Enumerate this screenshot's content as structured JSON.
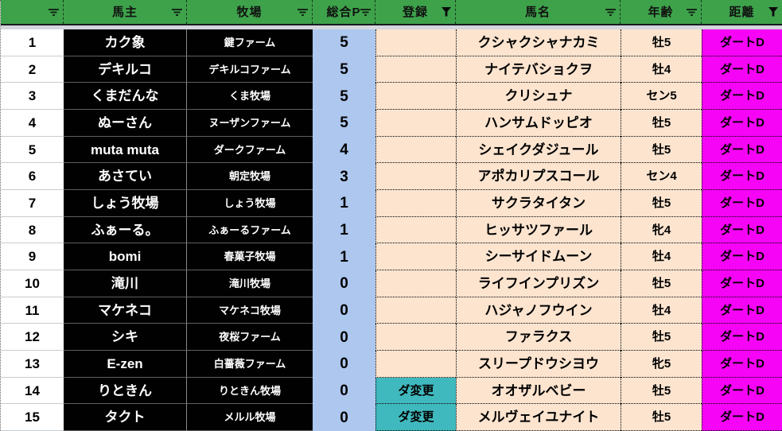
{
  "table": {
    "headers": [
      {
        "label": "",
        "filter": "sort"
      },
      {
        "label": "馬主",
        "filter": "sort"
      },
      {
        "label": "牧場",
        "filter": "sort"
      },
      {
        "label": "総合P",
        "filter": "sort"
      },
      {
        "label": "登録",
        "filter": "funnel"
      },
      {
        "label": "馬名",
        "filter": "sort"
      },
      {
        "label": "年齢",
        "filter": "sort"
      },
      {
        "label": "距離",
        "filter": "funnel"
      }
    ],
    "rows": [
      {
        "no": "1",
        "owner": "カク象",
        "farm": "鍵ファーム",
        "points": "5",
        "reg": "",
        "horse": "クシャクシャナカミ",
        "age": "牡5",
        "dist": "ダートD"
      },
      {
        "no": "2",
        "owner": "デキルコ",
        "farm": "デキルコファーム",
        "points": "5",
        "reg": "",
        "horse": "ナイテバショクヲ",
        "age": "牡4",
        "dist": "ダートD"
      },
      {
        "no": "3",
        "owner": "くまだんな",
        "farm": "くま牧場",
        "points": "5",
        "reg": "",
        "horse": "クリシュナ",
        "age": "セン5",
        "dist": "ダートD"
      },
      {
        "no": "4",
        "owner": "ぬーさん",
        "farm": "ヌーザンファーム",
        "points": "5",
        "reg": "",
        "horse": "ハンサムドッピオ",
        "age": "牡5",
        "dist": "ダートD"
      },
      {
        "no": "5",
        "owner": "muta muta",
        "farm": "ダークファーム",
        "points": "4",
        "reg": "",
        "horse": "シェイクダジュール",
        "age": "牡5",
        "dist": "ダートD"
      },
      {
        "no": "6",
        "owner": "あさてい",
        "farm": "朝定牧場",
        "points": "3",
        "reg": "",
        "horse": "アポカリプスコール",
        "age": "セン4",
        "dist": "ダートD"
      },
      {
        "no": "7",
        "owner": "しょう牧場",
        "farm": "しょう牧場",
        "points": "1",
        "reg": "",
        "horse": "サクラタイタン",
        "age": "牡5",
        "dist": "ダートD"
      },
      {
        "no": "8",
        "owner": "ふぁーる。",
        "farm": "ふぁーるファーム",
        "points": "1",
        "reg": "",
        "horse": "ヒッサツファール",
        "age": "牝4",
        "dist": "ダートD"
      },
      {
        "no": "9",
        "owner": "bomi",
        "farm": "春菓子牧場",
        "points": "1",
        "reg": "",
        "horse": "シーサイドムーン",
        "age": "牡4",
        "dist": "ダートD"
      },
      {
        "no": "10",
        "owner": "滝川",
        "farm": "滝川牧場",
        "points": "0",
        "reg": "",
        "horse": "ライフインプリズン",
        "age": "牡5",
        "dist": "ダートD"
      },
      {
        "no": "11",
        "owner": "マケネコ",
        "farm": "マケネコ牧場",
        "points": "0",
        "reg": "",
        "horse": "ハジャノフウイン",
        "age": "牡4",
        "dist": "ダートD"
      },
      {
        "no": "12",
        "owner": "シキ",
        "farm": "夜桜ファーム",
        "points": "0",
        "reg": "",
        "horse": "ファラクス",
        "age": "牡5",
        "dist": "ダートD"
      },
      {
        "no": "13",
        "owner": "E-zen",
        "farm": "白薔薇ファーム",
        "points": "0",
        "reg": "",
        "horse": "スリープドウシヨウ",
        "age": "牝5",
        "dist": "ダートD"
      },
      {
        "no": "14",
        "owner": "りときん",
        "farm": "りときん牧場",
        "points": "0",
        "reg": "ダ変更",
        "horse": "オオザルベビー",
        "age": "牡5",
        "dist": "ダートD"
      },
      {
        "no": "15",
        "owner": "タクト",
        "farm": "メルル牧場",
        "points": "0",
        "reg": "ダ変更",
        "horse": "メルヴェイユナイト",
        "age": "牡5",
        "dist": "ダートD"
      }
    ]
  },
  "colors": {
    "header_green": "#3EA24B",
    "dark_line": "#181b20",
    "band_gray": "#d3d7dd",
    "points_blue": "#ADC7EE",
    "cell_peach": "#FCE4CF",
    "dist_magenta": "#F504F5",
    "reg_teal": "#3FB9BE",
    "black_cell": "#010101"
  }
}
